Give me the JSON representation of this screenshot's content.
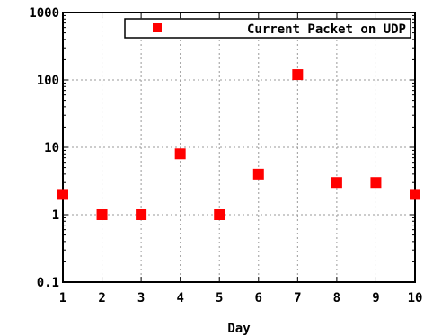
{
  "chart_data": {
    "type": "scatter",
    "title": "",
    "xlabel": "Day",
    "ylabel": "",
    "x": [
      1,
      2,
      3,
      4,
      5,
      6,
      7,
      8,
      9,
      10
    ],
    "series": [
      {
        "name": "Current Packet on UDP",
        "values": [
          2,
          1,
          1,
          8,
          1,
          4,
          120,
          3,
          3,
          2
        ],
        "color": "#ff0000"
      }
    ],
    "xlim": [
      1,
      10
    ],
    "ylim": [
      0.1,
      1000
    ],
    "yscale": "log",
    "x_ticks": [
      "1",
      "2",
      "3",
      "4",
      "5",
      "6",
      "7",
      "8",
      "9",
      "10"
    ],
    "y_ticks": [
      "0.1",
      "1",
      "10",
      "100",
      "1000"
    ],
    "grid": true,
    "legend": "top-right",
    "marker": "square"
  }
}
